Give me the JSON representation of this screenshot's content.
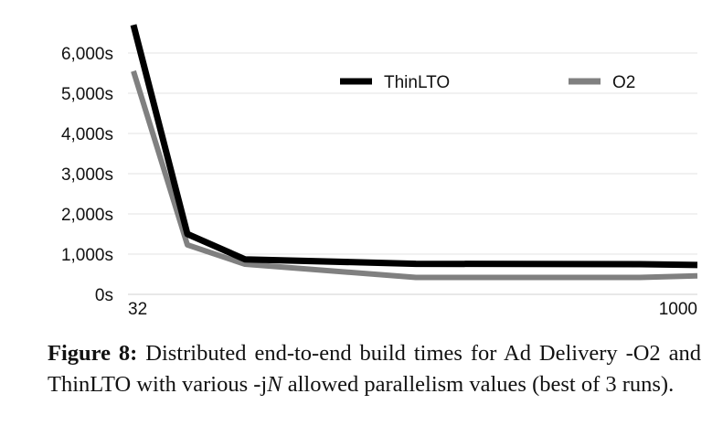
{
  "chart_data": {
    "type": "line",
    "x": [
      "32",
      "",
      "",
      "",
      "",
      "1000"
    ],
    "x_tick_labels": [
      "32",
      "1000"
    ],
    "y_tick_labels": [
      "0s",
      "1,000s",
      "2,000s",
      "3,000s",
      "4,000s",
      "5,000s",
      "6,000s"
    ],
    "ylim": [
      0,
      6800
    ],
    "grid": true,
    "legend_position": "top-right",
    "series": [
      {
        "name": "ThinLTO",
        "color": "#000000",
        "values": [
          6700,
          1500,
          870,
          760,
          750,
          730
        ]
      },
      {
        "name": "O2",
        "color": "#808080",
        "values": [
          5550,
          1230,
          750,
          420,
          420,
          460
        ]
      }
    ]
  },
  "caption": {
    "label": "Figure 8:",
    "text": " Distributed end-to-end build times for Ad Delivery -O2 and ThinLTO with various -j",
    "italic": "N",
    "text_after": " allowed parallelism values (best of 3 runs)."
  }
}
